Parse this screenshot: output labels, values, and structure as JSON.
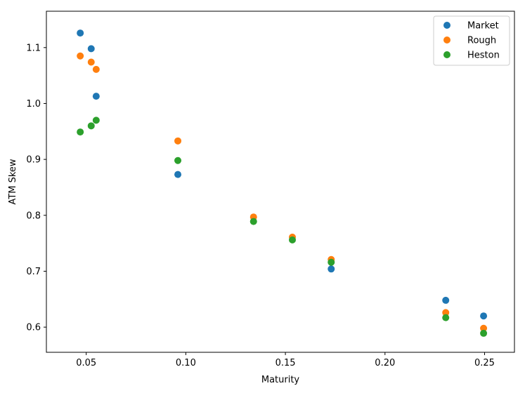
{
  "chart_data": {
    "type": "scatter",
    "title": "",
    "xlabel": "Maturity",
    "ylabel": "ATM Skew",
    "xlim": [
      0.03,
      0.265
    ],
    "ylim": [
      0.555,
      1.165
    ],
    "xticks": [
      0.05,
      0.1,
      0.15,
      0.2,
      0.25
    ],
    "xtick_labels": [
      "0.05",
      "0.10",
      "0.15",
      "0.20",
      "0.25"
    ],
    "yticks": [
      0.6,
      0.7,
      0.8,
      0.9,
      1.0,
      1.1
    ],
    "ytick_labels": [
      "0.6",
      "0.7",
      "0.8",
      "0.9",
      "1.0",
      "1.1"
    ],
    "grid": false,
    "legend": "top-right",
    "series": [
      {
        "name": "Market",
        "color": "#1f77b4",
        "x": [
          0.047,
          0.0525,
          0.055,
          0.096,
          0.173,
          0.2305,
          0.2495
        ],
        "y": [
          1.126,
          1.098,
          1.013,
          0.873,
          0.704,
          0.648,
          0.62
        ]
      },
      {
        "name": "Rough",
        "color": "#ff7f0e",
        "x": [
          0.047,
          0.0525,
          0.055,
          0.096,
          0.134,
          0.1535,
          0.173,
          0.2305,
          0.2495
        ],
        "y": [
          1.085,
          1.074,
          1.061,
          0.933,
          0.797,
          0.761,
          0.721,
          0.626,
          0.598
        ]
      },
      {
        "name": "Heston",
        "color": "#2ca02c",
        "x": [
          0.047,
          0.0525,
          0.055,
          0.096,
          0.134,
          0.1535,
          0.173,
          0.2305,
          0.2495
        ],
        "y": [
          0.949,
          0.96,
          0.97,
          0.898,
          0.789,
          0.756,
          0.716,
          0.617,
          0.589
        ]
      }
    ]
  }
}
